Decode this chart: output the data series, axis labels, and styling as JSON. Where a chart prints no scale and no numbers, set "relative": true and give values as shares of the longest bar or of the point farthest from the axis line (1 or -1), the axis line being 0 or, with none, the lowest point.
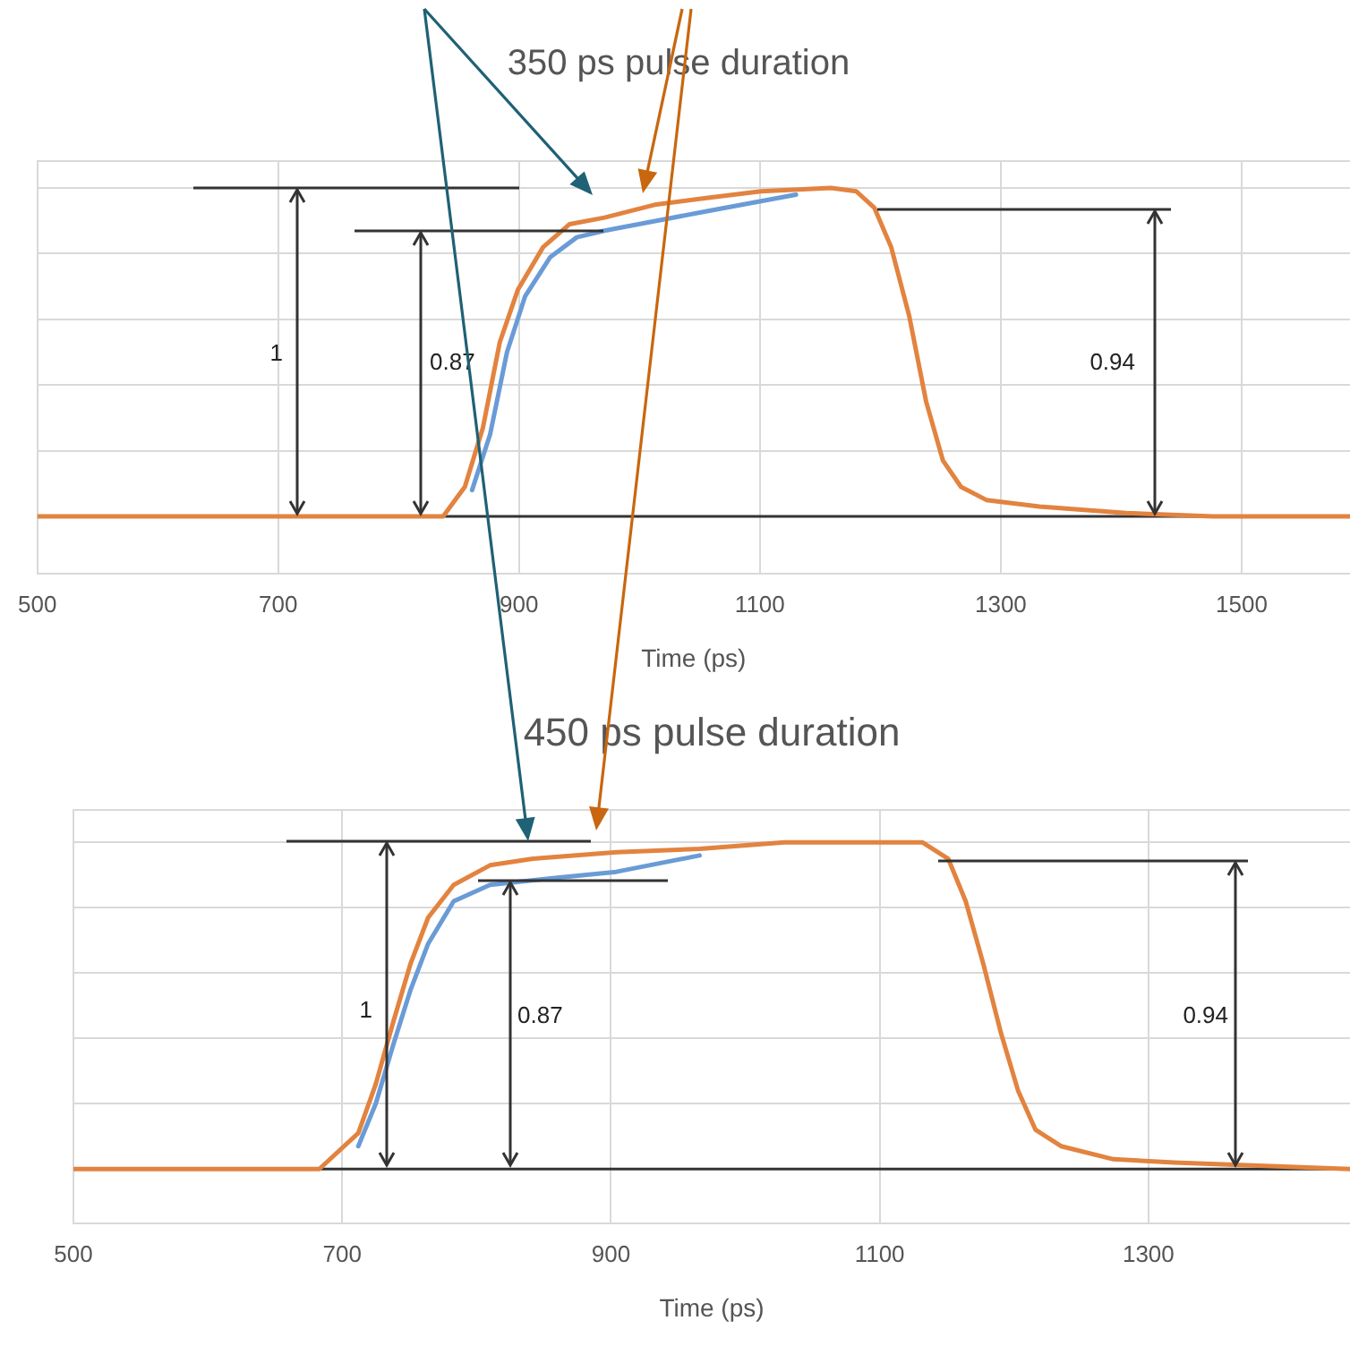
{
  "chart_data": [
    {
      "type": "line",
      "title": "350 ps pulse duration",
      "xlabel": "Time (ps)",
      "relative": true,
      "grid": true,
      "legend": false,
      "tick_labels": "x",
      "xlim": [
        500,
        1590
      ],
      "xticks": [
        500,
        700,
        900,
        1100,
        1300,
        1500
      ],
      "series": [
        {
          "color": "#6a9bd6",
          "x": [
            861,
            876,
            890,
            905,
            926,
            948,
            971,
            1014,
            1057,
            1101,
            1130
          ],
          "values": [
            0.08,
            0.25,
            0.5,
            0.67,
            0.79,
            0.85,
            0.87,
            0.9,
            0.93,
            0.96,
            0.98
          ]
        },
        {
          "color": "#e2833f",
          "x": [
            500,
            600,
            700,
            800,
            837,
            855,
            870,
            884,
            899,
            920,
            942,
            971,
            1014,
            1057,
            1101,
            1159,
            1180,
            1195,
            1209,
            1224,
            1238,
            1252,
            1267,
            1288,
            1332,
            1404,
            1476,
            1590
          ],
          "values": [
            0,
            0,
            0,
            0,
            0,
            0.09,
            0.27,
            0.53,
            0.69,
            0.82,
            0.89,
            0.91,
            0.95,
            0.97,
            0.99,
            1,
            0.99,
            0.94,
            0.82,
            0.61,
            0.35,
            0.17,
            0.09,
            0.05,
            0.03,
            0.01,
            0,
            0
          ]
        }
      ],
      "ref_lines": [
        {
          "axis": "y",
          "value": 0,
          "color": "#333333"
        }
      ],
      "annotations": [
        "1",
        "0.87",
        "0.94"
      ]
    },
    {
      "type": "line",
      "title": "450 ps pulse duration",
      "xlabel": "Time (ps)",
      "relative": true,
      "grid": true,
      "legend": false,
      "tick_labels": "x",
      "xlim": [
        500,
        1450
      ],
      "xticks": [
        500,
        700,
        900,
        1100,
        1300
      ],
      "series": [
        {
          "color": "#6a9bd6",
          "x": [
            712,
            725,
            738,
            751,
            764,
            783,
            810,
            855,
            904,
            966
          ],
          "values": [
            0.07,
            0.2,
            0.38,
            0.55,
            0.69,
            0.82,
            0.87,
            0.89,
            0.91,
            0.96
          ]
        },
        {
          "color": "#e2833f",
          "x": [
            500,
            600,
            683,
            712,
            725,
            738,
            751,
            764,
            783,
            810,
            842,
            904,
            966,
            1029,
            1132,
            1151,
            1164,
            1177,
            1190,
            1203,
            1216,
            1235,
            1274,
            1319,
            1382,
            1450
          ],
          "values": [
            0,
            0,
            0,
            0.11,
            0.26,
            0.45,
            0.63,
            0.77,
            0.87,
            0.93,
            0.95,
            0.97,
            0.98,
            1,
            1,
            0.95,
            0.82,
            0.63,
            0.42,
            0.24,
            0.12,
            0.07,
            0.03,
            0.02,
            0.01,
            0
          ]
        }
      ],
      "ref_lines": [
        {
          "axis": "y",
          "value": 0,
          "color": "#333333"
        }
      ],
      "annotations": [
        "1",
        "0.87",
        "0.94"
      ]
    }
  ]
}
